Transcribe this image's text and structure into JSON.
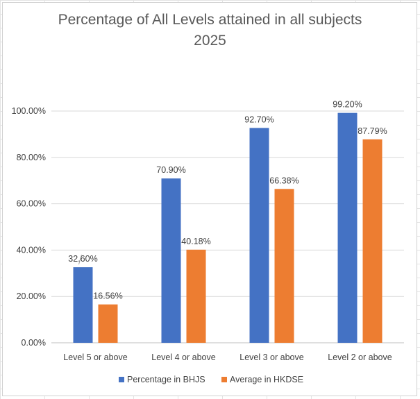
{
  "chart_data": {
    "type": "bar",
    "title_lines": [
      "Percentage of All Levels attained in all subjects",
      "2025"
    ],
    "categories": [
      "Level 5 or above",
      "Level 4 or above",
      "Level 3 or above",
      "Level 2 or above"
    ],
    "series": [
      {
        "name": "Percentage in BHJS",
        "color": "#4472C4",
        "values": [
          32.6,
          70.9,
          92.7,
          99.2
        ],
        "labels": [
          "32.60%",
          "70.90%",
          "92.70%",
          "99.20%"
        ]
      },
      {
        "name": "Average in HKDSE",
        "color": "#ED7D31",
        "values": [
          16.56,
          40.18,
          66.38,
          87.79
        ],
        "labels": [
          "16.56%",
          "40.18%",
          "66.38%",
          "87.79%"
        ]
      }
    ],
    "ylim": [
      0,
      100
    ],
    "yticks": [
      0,
      20,
      40,
      60,
      80,
      100
    ],
    "ytick_labels": [
      "0.00%",
      "20.00%",
      "40.00%",
      "60.00%",
      "80.00%",
      "100.00%"
    ],
    "grid": true,
    "legend_position": "bottom"
  }
}
